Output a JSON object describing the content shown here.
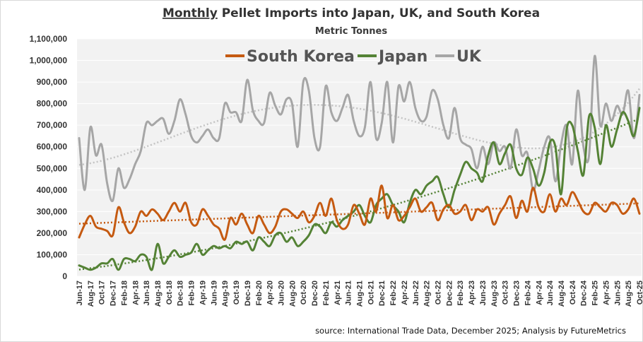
{
  "chart_data": {
    "type": "line",
    "title_emph": "Monthly",
    "title_rest": " Pellet Imports into Japan, UK, and South Korea",
    "subtitle": "Metric Tonnes",
    "source": "source: International Trade Data, December 2025; Analysis by FutureMetrics",
    "ylim": [
      0,
      1100000
    ],
    "yticks": [
      "0",
      "100,000",
      "200,000",
      "300,000",
      "400,000",
      "500,000",
      "600,000",
      "700,000",
      "800,000",
      "900,000",
      "1,000,000",
      "1,100,000"
    ],
    "xticks": [
      "Jun-17",
      "Aug-17",
      "Oct-17",
      "Dec-17",
      "Feb-18",
      "Apr-18",
      "Jun-18",
      "Aug-18",
      "Oct-18",
      "Dec-18",
      "Feb-19",
      "Apr-19",
      "Jun-19",
      "Aug-19",
      "Oct-19",
      "Dec-19",
      "Feb-20",
      "Apr-20",
      "Jun-20",
      "Aug-20",
      "Oct-20",
      "Dec-20",
      "Feb-21",
      "Apr-21",
      "Jun-21",
      "Aug-21",
      "Oct-21",
      "Dec-21",
      "Feb-22",
      "Apr-22",
      "Jun-22",
      "Aug-22",
      "Oct-22",
      "Dec-22",
      "Feb-23",
      "Apr-23",
      "Jun-23",
      "Aug-23",
      "Oct-23",
      "Dec-23",
      "Feb-24",
      "Apr-24",
      "Jun-24",
      "Aug-24",
      "Oct-24",
      "Dec-24",
      "Feb-25",
      "Apr-25",
      "Jun-25",
      "Aug-25",
      "Oct-25"
    ],
    "x_start": "Jun-17",
    "months": 101,
    "legend": [
      "South Korea",
      "Japan",
      "UK"
    ],
    "trendlines": "dotted polynomial trend per series",
    "series": [
      {
        "name": "UK",
        "color": "#a6a6a6",
        "trend_color": "#c4c4c4",
        "values": [
          640000,
          400000,
          690000,
          560000,
          610000,
          430000,
          350000,
          500000,
          410000,
          450000,
          520000,
          580000,
          710000,
          700000,
          720000,
          730000,
          660000,
          720000,
          820000,
          750000,
          650000,
          620000,
          650000,
          680000,
          640000,
          640000,
          800000,
          760000,
          760000,
          720000,
          910000,
          770000,
          720000,
          710000,
          850000,
          790000,
          750000,
          820000,
          800000,
          600000,
          900000,
          860000,
          640000,
          600000,
          880000,
          760000,
          720000,
          780000,
          840000,
          720000,
          650000,
          690000,
          900000,
          640000,
          710000,
          900000,
          620000,
          880000,
          810000,
          900000,
          780000,
          720000,
          740000,
          860000,
          820000,
          700000,
          640000,
          780000,
          640000,
          610000,
          590000,
          500000,
          600000,
          520000,
          620000,
          580000,
          600000,
          500000,
          680000,
          560000,
          570000,
          400000,
          490000,
          600000,
          640000,
          440000,
          610000,
          700000,
          520000,
          860000,
          600000,
          560000,
          1020000,
          700000,
          800000,
          720000,
          790000,
          750000,
          860000,
          640000,
          840000
        ]
      },
      {
        "name": "Japan",
        "color": "#548235",
        "trend_color": "#548235",
        "values": [
          50000,
          40000,
          30000,
          40000,
          60000,
          60000,
          80000,
          30000,
          80000,
          80000,
          70000,
          100000,
          90000,
          30000,
          150000,
          60000,
          90000,
          120000,
          90000,
          100000,
          110000,
          150000,
          100000,
          120000,
          140000,
          130000,
          140000,
          130000,
          160000,
          150000,
          160000,
          120000,
          180000,
          160000,
          140000,
          190000,
          200000,
          160000,
          180000,
          140000,
          160000,
          190000,
          240000,
          230000,
          200000,
          250000,
          230000,
          260000,
          280000,
          300000,
          330000,
          280000,
          250000,
          330000,
          360000,
          380000,
          330000,
          300000,
          250000,
          340000,
          400000,
          380000,
          420000,
          440000,
          460000,
          380000,
          320000,
          400000,
          470000,
          530000,
          500000,
          480000,
          440000,
          560000,
          620000,
          520000,
          570000,
          610000,
          500000,
          470000,
          550000,
          500000,
          420000,
          480000,
          620000,
          600000,
          380000,
          680000,
          700000,
          580000,
          470000,
          740000,
          690000,
          520000,
          700000,
          600000,
          680000,
          760000,
          720000,
          650000,
          780000
        ]
      },
      {
        "name": "South Korea",
        "color": "#c55a11",
        "trend_color": "#c55a11",
        "values": [
          180000,
          240000,
          280000,
          230000,
          220000,
          210000,
          190000,
          320000,
          250000,
          200000,
          230000,
          300000,
          280000,
          310000,
          290000,
          260000,
          300000,
          340000,
          300000,
          340000,
          250000,
          240000,
          310000,
          280000,
          240000,
          220000,
          170000,
          270000,
          240000,
          290000,
          240000,
          200000,
          280000,
          240000,
          200000,
          230000,
          300000,
          310000,
          290000,
          270000,
          300000,
          250000,
          280000,
          340000,
          280000,
          360000,
          260000,
          220000,
          240000,
          330000,
          290000,
          240000,
          360000,
          300000,
          420000,
          270000,
          330000,
          260000,
          280000,
          320000,
          360000,
          300000,
          320000,
          340000,
          260000,
          310000,
          330000,
          290000,
          300000,
          330000,
          260000,
          310000,
          300000,
          320000,
          240000,
          290000,
          330000,
          370000,
          270000,
          350000,
          300000,
          410000,
          320000,
          300000,
          380000,
          300000,
          360000,
          330000,
          390000,
          350000,
          300000,
          290000,
          340000,
          320000,
          300000,
          340000,
          330000,
          290000,
          310000,
          360000,
          290000
        ]
      }
    ]
  }
}
